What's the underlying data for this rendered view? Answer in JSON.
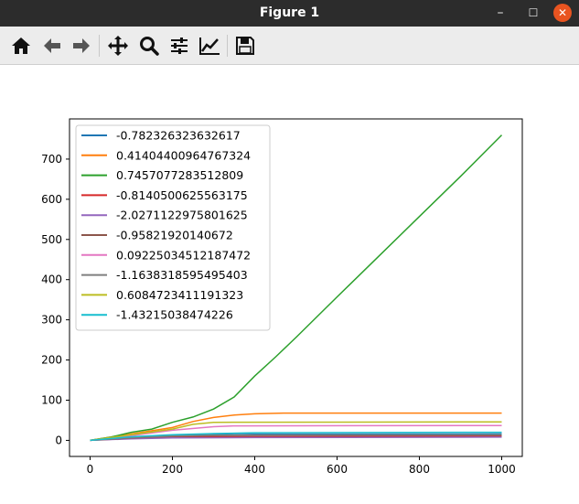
{
  "window": {
    "title": "Figure 1",
    "minimize_label": "–",
    "maximize_label": "☐",
    "close_label": "✕"
  },
  "toolbar": {
    "buttons": [
      {
        "name": "home",
        "icon": "home-icon"
      },
      {
        "name": "back",
        "icon": "arrow-left-icon"
      },
      {
        "name": "forward",
        "icon": "arrow-right-icon"
      },
      {
        "name": "pan",
        "icon": "move-icon"
      },
      {
        "name": "zoom",
        "icon": "magnifier-icon"
      },
      {
        "name": "configure-subplots",
        "icon": "sliders-icon"
      },
      {
        "name": "edit-axis",
        "icon": "line-chart-icon"
      },
      {
        "name": "save",
        "icon": "floppy-disk-icon"
      }
    ]
  },
  "chart_data": {
    "type": "line",
    "title": "",
    "xlabel": "",
    "ylabel": "",
    "xlim": [
      -50,
      1050
    ],
    "ylim": [
      -40,
      800
    ],
    "xticks": [
      0,
      200,
      400,
      600,
      800,
      1000
    ],
    "yticks": [
      0,
      100,
      200,
      300,
      400,
      500,
      600,
      700
    ],
    "grid": false,
    "legend_position": "upper-left",
    "series": [
      {
        "name": "-0.782326323632617",
        "color": "#1f77b4",
        "points": [
          [
            0,
            0
          ],
          [
            100,
            8
          ],
          [
            200,
            12
          ],
          [
            300,
            14
          ],
          [
            400,
            15
          ],
          [
            1000,
            16
          ]
        ]
      },
      {
        "name": "0.41404400964767324",
        "color": "#ff7f0e",
        "points": [
          [
            0,
            0
          ],
          [
            100,
            16
          ],
          [
            200,
            32
          ],
          [
            250,
            47
          ],
          [
            300,
            57
          ],
          [
            350,
            63
          ],
          [
            400,
            66
          ],
          [
            470,
            68
          ],
          [
            1000,
            68
          ]
        ]
      },
      {
        "name": "0.7457077283512809",
        "color": "#2ca02c",
        "points": [
          [
            0,
            0
          ],
          [
            50,
            8
          ],
          [
            100,
            20
          ],
          [
            150,
            28
          ],
          [
            200,
            45
          ],
          [
            250,
            58
          ],
          [
            300,
            78
          ],
          [
            350,
            108
          ],
          [
            400,
            160
          ],
          [
            450,
            207
          ],
          [
            500,
            256
          ],
          [
            600,
            357
          ],
          [
            700,
            457
          ],
          [
            800,
            557
          ],
          [
            900,
            657
          ],
          [
            1000,
            760
          ]
        ]
      },
      {
        "name": "-0.8140500625563175",
        "color": "#d62728",
        "points": [
          [
            0,
            0
          ],
          [
            100,
            5
          ],
          [
            200,
            8
          ],
          [
            300,
            9
          ],
          [
            1000,
            10
          ]
        ]
      },
      {
        "name": "-2.0271122975801625",
        "color": "#9467bd",
        "points": [
          [
            0,
            0
          ],
          [
            100,
            4
          ],
          [
            200,
            6
          ],
          [
            400,
            7
          ],
          [
            1000,
            8
          ]
        ]
      },
      {
        "name": "-0.95821920140672",
        "color": "#8c564b",
        "points": [
          [
            0,
            0
          ],
          [
            100,
            6
          ],
          [
            200,
            10
          ],
          [
            300,
            12
          ],
          [
            1000,
            13
          ]
        ]
      },
      {
        "name": "0.09225034512187472",
        "color": "#e377c2",
        "points": [
          [
            0,
            0
          ],
          [
            100,
            12
          ],
          [
            200,
            25
          ],
          [
            300,
            34
          ],
          [
            350,
            36
          ],
          [
            1000,
            37
          ]
        ]
      },
      {
        "name": "-1.1638318595495403",
        "color": "#7f7f7f",
        "points": [
          [
            0,
            0
          ],
          [
            100,
            7
          ],
          [
            200,
            11
          ],
          [
            300,
            13
          ],
          [
            1000,
            14
          ]
        ]
      },
      {
        "name": "0.6084723411191323",
        "color": "#bcbd22",
        "points": [
          [
            0,
            0
          ],
          [
            100,
            14
          ],
          [
            200,
            28
          ],
          [
            250,
            40
          ],
          [
            300,
            45
          ],
          [
            1000,
            46
          ]
        ]
      },
      {
        "name": "-1.43215038474226",
        "color": "#17becf",
        "points": [
          [
            0,
            0
          ],
          [
            100,
            9
          ],
          [
            200,
            14
          ],
          [
            300,
            17
          ],
          [
            400,
            19
          ],
          [
            1000,
            20
          ]
        ]
      }
    ]
  }
}
